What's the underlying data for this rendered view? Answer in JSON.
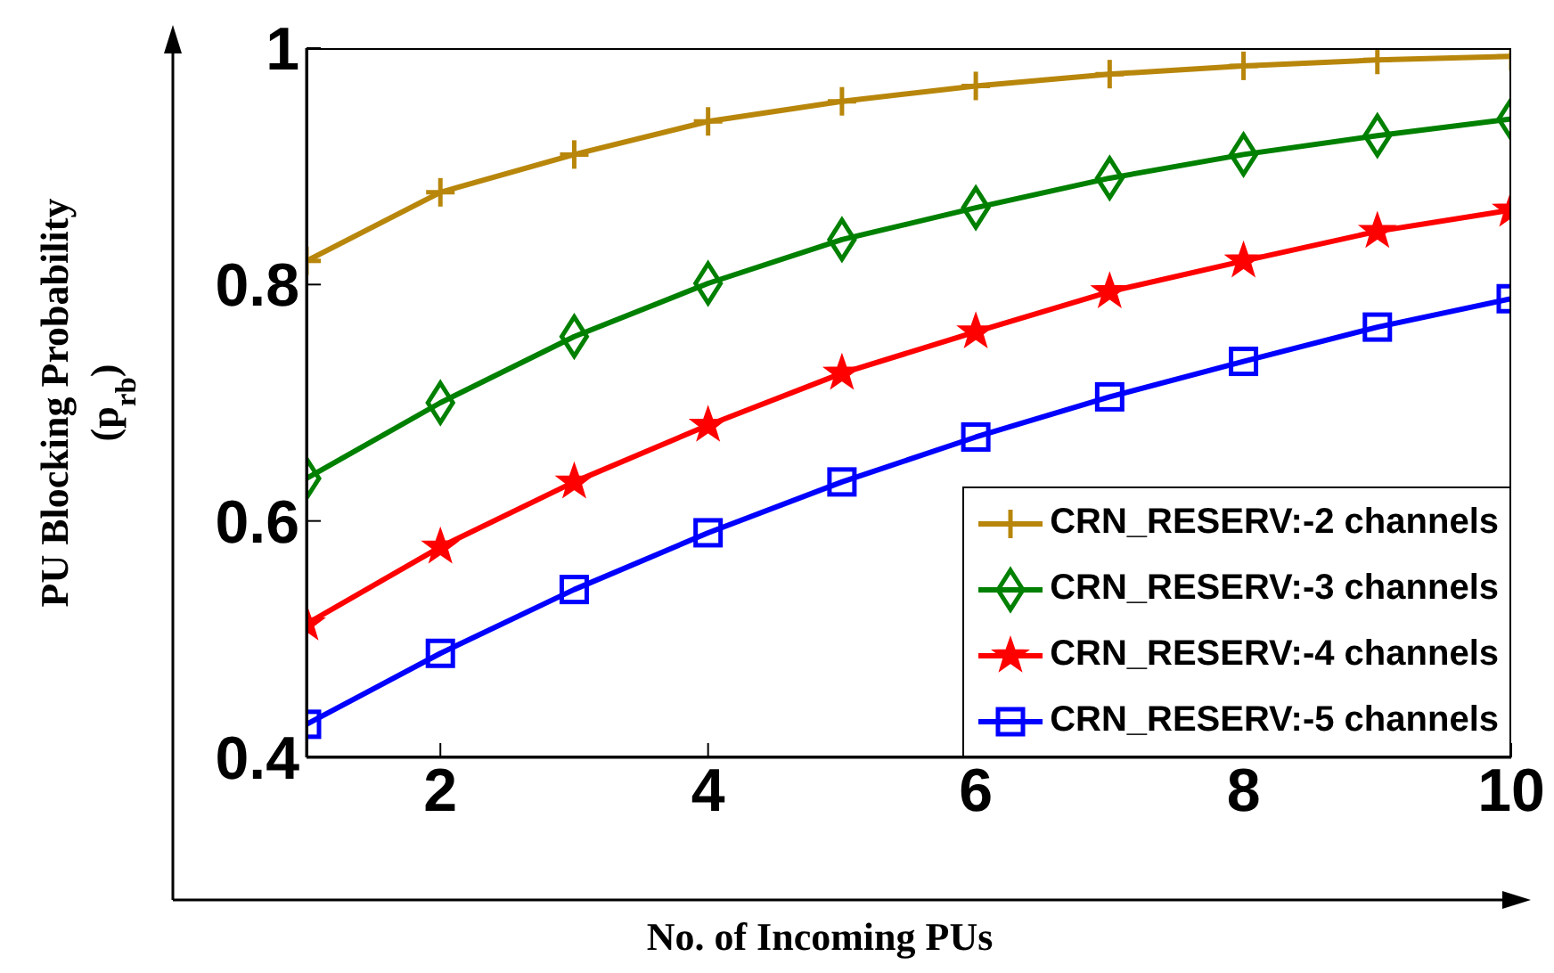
{
  "chart_data": {
    "type": "line",
    "xlabel": "No. of Incoming PUs",
    "ylabel": "PU Blocking Probability\n(p$_{rb}$)",
    "x": [
      1,
      2,
      3,
      4,
      5,
      6,
      7,
      8,
      9,
      10
    ],
    "xlim": [
      1,
      10
    ],
    "xticks": [
      2,
      4,
      6,
      8,
      10
    ],
    "ylim": [
      0.4,
      1
    ],
    "yticks": [
      0.4,
      0.6,
      0.8,
      1
    ],
    "grid": false,
    "legend": "bottom right",
    "line_style": "solid",
    "series": [
      {
        "name": "CRN_RESERV:-2 channels",
        "color": "#b8860b",
        "marker": "cross",
        "values": [
          0.82,
          0.878,
          0.91,
          0.938,
          0.955,
          0.968,
          0.978,
          0.985,
          0.99,
          0.993
        ]
      },
      {
        "name": "CRN_RESERV:-3 channels",
        "color": "#008000",
        "marker": "diamond",
        "values": [
          0.636,
          0.7,
          0.756,
          0.801,
          0.838,
          0.865,
          0.89,
          0.91,
          0.926,
          0.94
        ]
      },
      {
        "name": "CRN_RESERV:-4 channels",
        "color": "#ff0000",
        "marker": "star",
        "values": [
          0.513,
          0.578,
          0.633,
          0.681,
          0.725,
          0.76,
          0.794,
          0.82,
          0.845,
          0.863
        ]
      },
      {
        "name": "CRN_RESERV:-5 channels",
        "color": "#0000ff",
        "marker": "square",
        "values": [
          0.428,
          0.488,
          0.542,
          0.59,
          0.633,
          0.671,
          0.705,
          0.735,
          0.764,
          0.788
        ]
      }
    ]
  }
}
